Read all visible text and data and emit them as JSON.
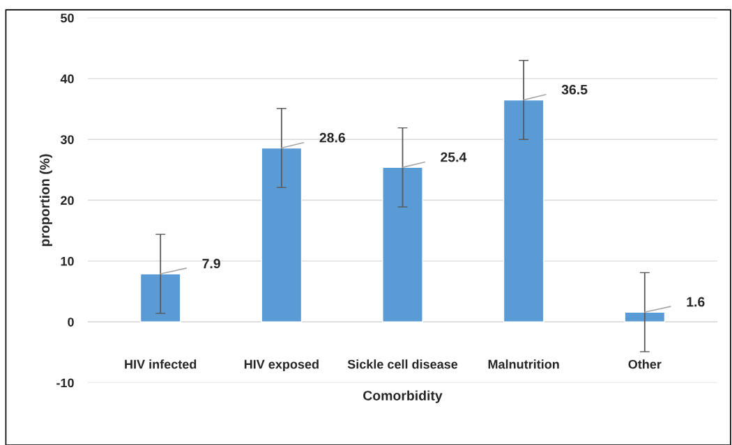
{
  "chart_data": {
    "type": "bar",
    "xlabel": "Comorbidity",
    "ylabel": "proportion (%)",
    "categories": [
      "HIV infected",
      "HIV exposed",
      "Sickle cell disease",
      "Malnutrition",
      "Other"
    ],
    "values": [
      7.9,
      28.6,
      25.4,
      36.5,
      1.6
    ],
    "errors": [
      6.5,
      6.5,
      6.5,
      6.5,
      6.5
    ],
    "color": "#5b9bd5",
    "ylim": [
      -10,
      50
    ],
    "yticks": [
      -10,
      0,
      10,
      20,
      30,
      40,
      50
    ],
    "grid": "y",
    "data_labels": true
  }
}
